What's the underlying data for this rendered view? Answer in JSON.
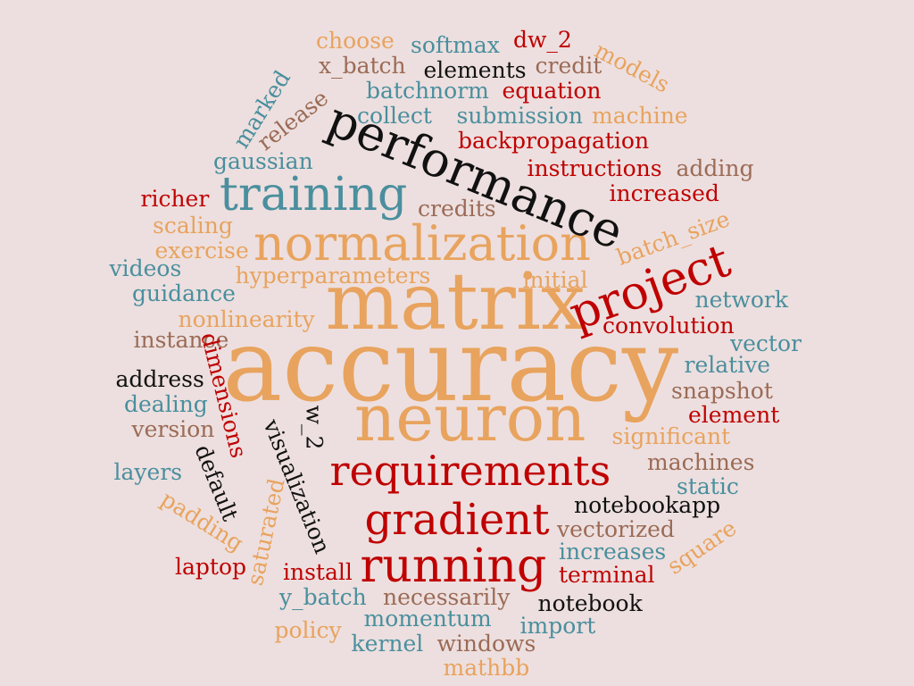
{
  "palette": {
    "background": "#eddfdf",
    "orange": "#e8a35e",
    "teal": "#4a8f9e",
    "red": "#c00000",
    "black": "#111111",
    "brown": "#9b6b56"
  },
  "words": [
    {
      "text": "accuracy",
      "color": "orange"
    },
    {
      "text": "matrix",
      "color": "orange"
    },
    {
      "text": "neuron",
      "color": "orange"
    },
    {
      "text": "normalization",
      "color": "orange"
    },
    {
      "text": "performance",
      "color": "black"
    },
    {
      "text": "training",
      "color": "teal"
    },
    {
      "text": "project",
      "color": "red"
    },
    {
      "text": "requirements",
      "color": "red"
    },
    {
      "text": "gradient",
      "color": "red"
    },
    {
      "text": "running",
      "color": "red"
    },
    {
      "text": "choose",
      "color": "orange"
    },
    {
      "text": "softmax",
      "color": "teal"
    },
    {
      "text": "dw_2",
      "color": "red"
    },
    {
      "text": "models",
      "color": "orange"
    },
    {
      "text": "x_batch",
      "color": "brown"
    },
    {
      "text": "elements",
      "color": "black"
    },
    {
      "text": "credit",
      "color": "brown"
    },
    {
      "text": "batchnorm",
      "color": "teal"
    },
    {
      "text": "equation",
      "color": "red"
    },
    {
      "text": "marked",
      "color": "teal"
    },
    {
      "text": "release",
      "color": "brown"
    },
    {
      "text": "collect",
      "color": "teal"
    },
    {
      "text": "submission",
      "color": "teal"
    },
    {
      "text": "machine",
      "color": "orange"
    },
    {
      "text": "backpropagation",
      "color": "red"
    },
    {
      "text": "gaussian",
      "color": "teal"
    },
    {
      "text": "instructions",
      "color": "red"
    },
    {
      "text": "adding",
      "color": "brown"
    },
    {
      "text": "richer",
      "color": "red"
    },
    {
      "text": "credits",
      "color": "brown"
    },
    {
      "text": "increased",
      "color": "red"
    },
    {
      "text": "scaling",
      "color": "orange"
    },
    {
      "text": "batch_size",
      "color": "orange"
    },
    {
      "text": "exercise",
      "color": "orange"
    },
    {
      "text": "videos",
      "color": "teal"
    },
    {
      "text": "hyperparameters",
      "color": "orange"
    },
    {
      "text": "initial",
      "color": "orange"
    },
    {
      "text": "guidance",
      "color": "teal"
    },
    {
      "text": "network",
      "color": "teal"
    },
    {
      "text": "nonlinearity",
      "color": "orange"
    },
    {
      "text": "convolution",
      "color": "red"
    },
    {
      "text": "instance",
      "color": "brown"
    },
    {
      "text": "vector",
      "color": "teal"
    },
    {
      "text": "address",
      "color": "black"
    },
    {
      "text": "relative",
      "color": "teal"
    },
    {
      "text": "dimensions",
      "color": "red"
    },
    {
      "text": "dealing",
      "color": "teal"
    },
    {
      "text": "snapshot",
      "color": "brown"
    },
    {
      "text": "w_2",
      "color": "black"
    },
    {
      "text": "element",
      "color": "red"
    },
    {
      "text": "version",
      "color": "brown"
    },
    {
      "text": "visualization",
      "color": "black"
    },
    {
      "text": "significant",
      "color": "orange"
    },
    {
      "text": "default",
      "color": "black"
    },
    {
      "text": "layers",
      "color": "teal"
    },
    {
      "text": "machines",
      "color": "brown"
    },
    {
      "text": "static",
      "color": "teal"
    },
    {
      "text": "padding",
      "color": "orange"
    },
    {
      "text": "saturated",
      "color": "orange"
    },
    {
      "text": "notebookapp",
      "color": "black"
    },
    {
      "text": "vectorized",
      "color": "brown"
    },
    {
      "text": "square",
      "color": "orange"
    },
    {
      "text": "increases",
      "color": "teal"
    },
    {
      "text": "laptop",
      "color": "red"
    },
    {
      "text": "install",
      "color": "red"
    },
    {
      "text": "terminal",
      "color": "red"
    },
    {
      "text": "y_batch",
      "color": "teal"
    },
    {
      "text": "necessarily",
      "color": "brown"
    },
    {
      "text": "notebook",
      "color": "black"
    },
    {
      "text": "policy",
      "color": "orange"
    },
    {
      "text": "momentum",
      "color": "teal"
    },
    {
      "text": "import",
      "color": "teal"
    },
    {
      "text": "kernel",
      "color": "teal"
    },
    {
      "text": "windows",
      "color": "brown"
    },
    {
      "text": "mathbb",
      "color": "orange"
    }
  ]
}
